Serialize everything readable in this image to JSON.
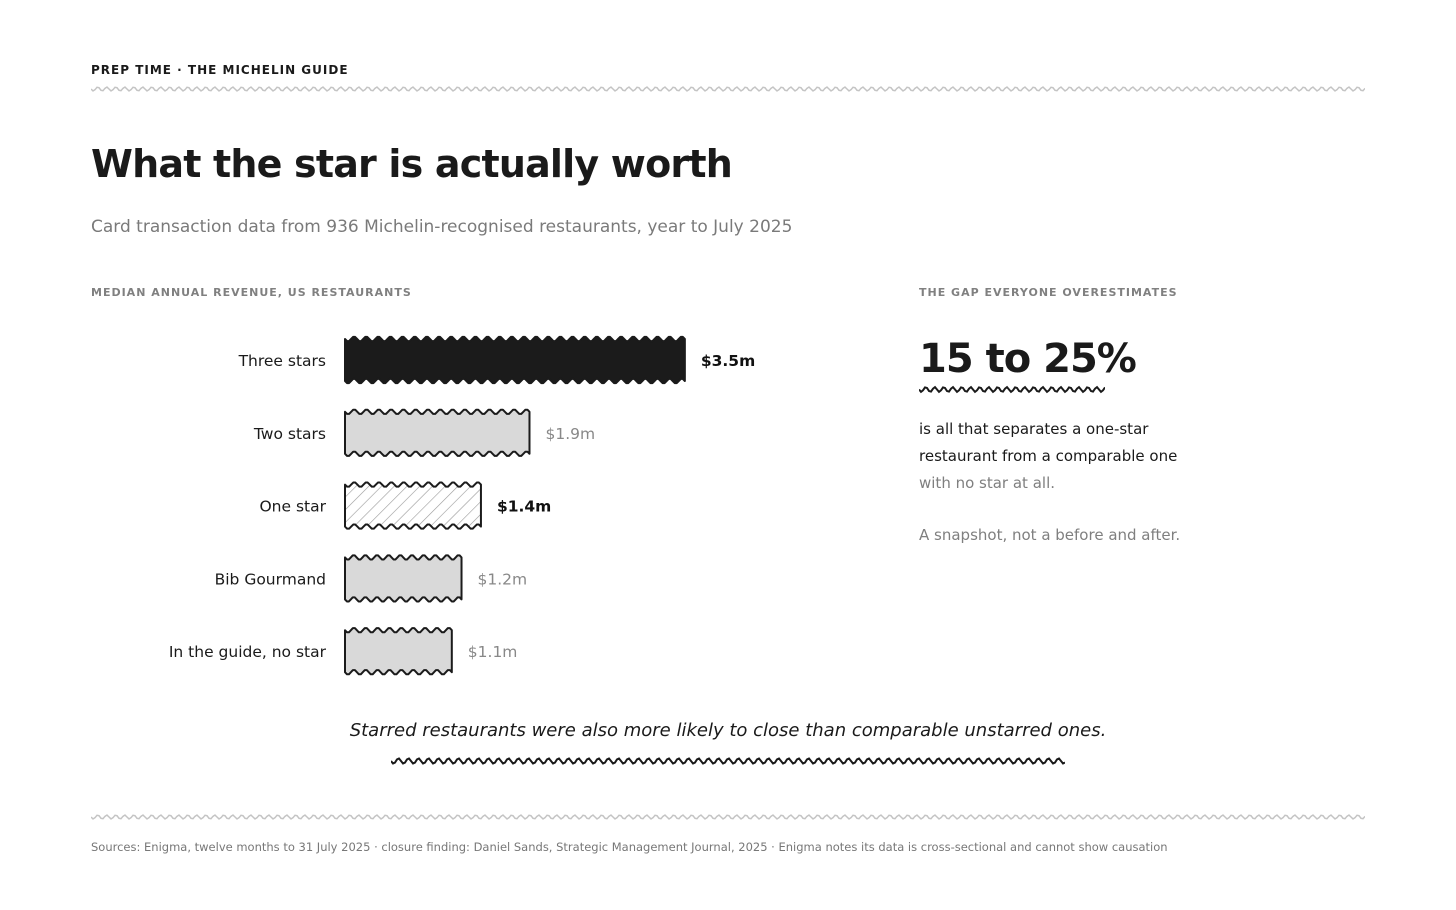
{
  "header": {
    "kicker": "PREP TIME · THE MICHELIN GUIDE",
    "title": "What the star is actually worth",
    "subtitle": "Card transaction data from 936 Michelin-recognised restaurants, year to July 2025"
  },
  "chart_section": {
    "label": "MEDIAN ANNUAL REVENUE, US RESTAURANTS"
  },
  "chart_data": {
    "type": "bar",
    "orientation": "horizontal",
    "categories": [
      "Three stars",
      "Two stars",
      "One star",
      "Bib Gourmand",
      "In the guide, no star"
    ],
    "values": [
      3.5,
      1.9,
      1.4,
      1.2,
      1.1
    ],
    "value_labels": [
      "$3.5m",
      "$1.9m",
      "$1.4m",
      "$1.2m",
      "$1.1m"
    ],
    "styles": [
      "solid",
      "plain",
      "hatched",
      "plain",
      "plain"
    ],
    "highlight": [
      true,
      false,
      true,
      false,
      false
    ],
    "grid": false,
    "colors": {
      "solid": "#1b1b1b",
      "plain": "#d9d9d9",
      "outline": "#1b1b1b",
      "hatch": "#9a9a9a",
      "label_emphasis": "#111111",
      "label_muted": "#888888"
    }
  },
  "sidebar": {
    "label": "THE GAP EVERYONE OVERESTIMATES",
    "stat": "15 to 25%",
    "body_dark": "is all that separates a one-star restaurant from a comparable one",
    "body_muted": "with no star at all.",
    "note": "A snapshot, not a before and after."
  },
  "pullquote": "Starred restaurants were also more likely to close than comparable unstarred ones.",
  "sources": "Sources: Enigma, twelve months to 31 July 2025 · closure finding: Daniel Sands, Strategic Management Journal, 2025 · Enigma notes its data is cross-sectional and cannot show causation"
}
